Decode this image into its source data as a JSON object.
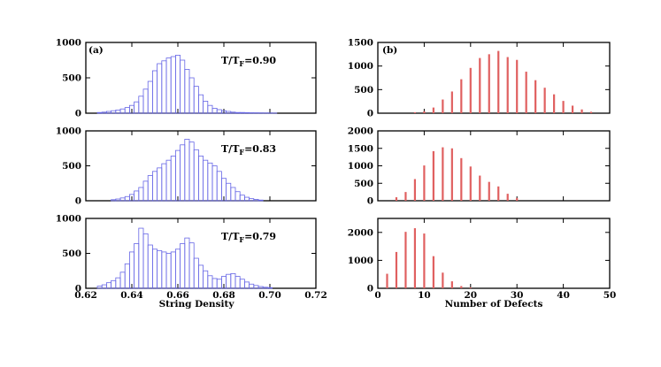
{
  "colors": {
    "histogram": "#6666e6",
    "defects": "#e06060",
    "axis": "#000000"
  },
  "labels": {
    "panel_a": "(a)",
    "panel_b": "(b)",
    "xlabel_a": "String Density",
    "xlabel_b": "Number of Defects"
  },
  "chart_data": [
    {
      "type": "bar",
      "panel": "(a)",
      "row": 0,
      "temperature": {
        "base": "T/T",
        "sub": "F",
        "value": "=0.90"
      },
      "xlim": [
        0.62,
        0.72
      ],
      "ylim": [
        0,
        1000
      ],
      "yticks": [
        "0",
        "500",
        "1000"
      ],
      "xticks": [
        "0.62",
        "0.64",
        "0.66",
        "0.68",
        "0.70",
        "0.72"
      ],
      "show_xticks": false,
      "bin_width": 0.002,
      "x": [
        0.626,
        0.628,
        0.63,
        0.632,
        0.634,
        0.636,
        0.638,
        0.64,
        0.642,
        0.644,
        0.646,
        0.648,
        0.65,
        0.652,
        0.654,
        0.656,
        0.658,
        0.66,
        0.662,
        0.664,
        0.666,
        0.668,
        0.67,
        0.672,
        0.674,
        0.676,
        0.678,
        0.68,
        0.682,
        0.684,
        0.686,
        0.688,
        0.69,
        0.692,
        0.694,
        0.696,
        0.698,
        0.7,
        0.702
      ],
      "values": [
        10,
        15,
        25,
        35,
        45,
        60,
        80,
        110,
        160,
        240,
        340,
        450,
        600,
        700,
        740,
        780,
        800,
        820,
        750,
        620,
        500,
        380,
        260,
        170,
        110,
        70,
        50,
        35,
        25,
        15,
        10,
        10,
        8,
        6,
        5,
        4,
        3,
        3,
        2
      ]
    },
    {
      "type": "bar",
      "panel": "(a)",
      "row": 1,
      "temperature": {
        "base": "T/T",
        "sub": "F",
        "value": "=0.83"
      },
      "xlim": [
        0.62,
        0.72
      ],
      "ylim": [
        0,
        1000
      ],
      "yticks": [
        "0",
        "500",
        "1000"
      ],
      "xticks": [
        "0.62",
        "0.64",
        "0.66",
        "0.68",
        "0.70",
        "0.72"
      ],
      "show_xticks": false,
      "bin_width": 0.002,
      "x": [
        0.632,
        0.634,
        0.636,
        0.638,
        0.64,
        0.642,
        0.644,
        0.646,
        0.648,
        0.65,
        0.652,
        0.654,
        0.656,
        0.658,
        0.66,
        0.662,
        0.664,
        0.666,
        0.668,
        0.67,
        0.672,
        0.674,
        0.676,
        0.678,
        0.68,
        0.682,
        0.684,
        0.686,
        0.688,
        0.69,
        0.692,
        0.694,
        0.696
      ],
      "values": [
        15,
        25,
        40,
        60,
        90,
        140,
        190,
        280,
        360,
        420,
        470,
        530,
        580,
        640,
        720,
        800,
        880,
        840,
        730,
        640,
        580,
        540,
        500,
        420,
        320,
        250,
        190,
        130,
        80,
        50,
        30,
        20,
        10
      ]
    },
    {
      "type": "bar",
      "panel": "(a)",
      "row": 2,
      "temperature": {
        "base": "T/T",
        "sub": "F",
        "value": "=0.79"
      },
      "xlim": [
        0.62,
        0.72
      ],
      "ylim": [
        0,
        1000
      ],
      "yticks": [
        "0",
        "500",
        "1000"
      ],
      "xticks": [
        "0.62",
        "0.64",
        "0.66",
        "0.68",
        "0.70",
        "0.72"
      ],
      "show_xticks": true,
      "bin_width": 0.002,
      "x": [
        0.626,
        0.628,
        0.63,
        0.632,
        0.634,
        0.636,
        0.638,
        0.64,
        0.642,
        0.644,
        0.646,
        0.648,
        0.65,
        0.652,
        0.654,
        0.656,
        0.658,
        0.66,
        0.662,
        0.664,
        0.666,
        0.668,
        0.67,
        0.672,
        0.674,
        0.676,
        0.678,
        0.68,
        0.682,
        0.684,
        0.686,
        0.688,
        0.69,
        0.692,
        0.694,
        0.696,
        0.698,
        0.7
      ],
      "values": [
        30,
        50,
        80,
        110,
        150,
        230,
        350,
        520,
        640,
        860,
        780,
        620,
        560,
        540,
        520,
        500,
        520,
        560,
        640,
        720,
        650,
        430,
        330,
        250,
        180,
        140,
        130,
        170,
        200,
        210,
        170,
        130,
        90,
        60,
        40,
        25,
        15,
        10
      ]
    },
    {
      "type": "bar",
      "panel": "(b)",
      "row": 0,
      "xlim": [
        0,
        50
      ],
      "ylim": [
        0,
        1500
      ],
      "yticks": [
        "0",
        "500",
        "1000",
        "1500"
      ],
      "xticks": [
        "0",
        "10",
        "20",
        "30",
        "40",
        "50"
      ],
      "show_xticks": false,
      "x": [
        8,
        10,
        12,
        14,
        16,
        18,
        20,
        22,
        24,
        26,
        28,
        30,
        32,
        34,
        36,
        38,
        40,
        42,
        44,
        46
      ],
      "values": [
        20,
        40,
        120,
        290,
        460,
        720,
        960,
        1170,
        1250,
        1320,
        1190,
        1130,
        880,
        700,
        540,
        400,
        260,
        160,
        80,
        30
      ]
    },
    {
      "type": "bar",
      "panel": "(b)",
      "row": 1,
      "xlim": [
        0,
        50
      ],
      "ylim": [
        0,
        2000
      ],
      "yticks": [
        "0",
        "500",
        "1000",
        "1500",
        "2000"
      ],
      "xticks": [
        "0",
        "10",
        "20",
        "30",
        "40",
        "50"
      ],
      "show_xticks": false,
      "x": [
        4,
        6,
        8,
        10,
        12,
        14,
        16,
        18,
        20,
        22,
        24,
        26,
        28,
        30
      ],
      "values": [
        100,
        250,
        620,
        1010,
        1420,
        1530,
        1500,
        1220,
        980,
        720,
        540,
        410,
        200,
        80
      ]
    },
    {
      "type": "bar",
      "panel": "(b)",
      "row": 2,
      "xlim": [
        0,
        50
      ],
      "ylim": [
        0,
        2500
      ],
      "yticks": [
        "0",
        "1000",
        "2000"
      ],
      "xticks": [
        "0",
        "10",
        "20",
        "30",
        "40",
        "50"
      ],
      "show_xticks": true,
      "x": [
        2,
        4,
        6,
        8,
        10,
        12,
        14,
        16,
        18,
        20
      ],
      "values": [
        520,
        1300,
        2020,
        2150,
        1960,
        1150,
        560,
        250,
        80,
        30
      ]
    }
  ]
}
